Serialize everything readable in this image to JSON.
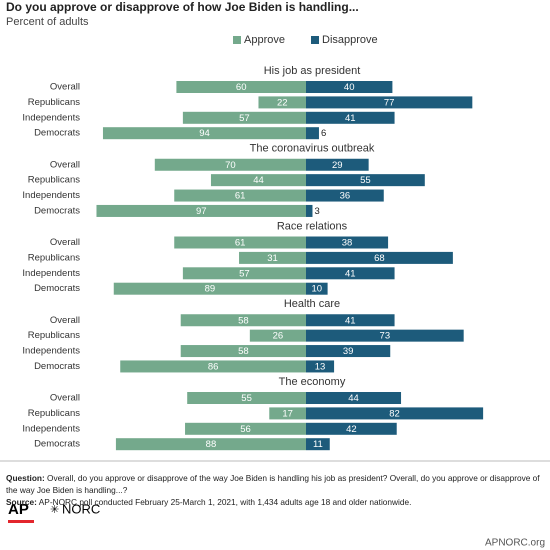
{
  "header": {
    "title": "Do you approve or disapprove of how Joe Biden is handling...",
    "subtitle": "Percent of adults"
  },
  "chart_data": [
    {
      "type": "bar",
      "title": "His job as president",
      "categories": [
        "Overall",
        "Republicans",
        "Independents",
        "Democrats"
      ],
      "series": [
        {
          "name": "Approve",
          "color": "#74a98c",
          "values": [
            60,
            22,
            57,
            94
          ]
        },
        {
          "name": "Disapprove",
          "color": "#1d5b7b",
          "values": [
            40,
            77,
            41,
            6
          ]
        }
      ]
    },
    {
      "type": "bar",
      "title": "The coronavirus outbreak",
      "categories": [
        "Overall",
        "Republicans",
        "Independents",
        "Democrats"
      ],
      "series": [
        {
          "name": "Approve",
          "color": "#74a98c",
          "values": [
            70,
            44,
            61,
            97
          ]
        },
        {
          "name": "Disapprove",
          "color": "#1d5b7b",
          "values": [
            29,
            55,
            36,
            3
          ]
        }
      ]
    },
    {
      "type": "bar",
      "title": "Race relations",
      "categories": [
        "Overall",
        "Republicans",
        "Independents",
        "Democrats"
      ],
      "series": [
        {
          "name": "Approve",
          "color": "#74a98c",
          "values": [
            61,
            31,
            57,
            89
          ]
        },
        {
          "name": "Disapprove",
          "color": "#1d5b7b",
          "values": [
            38,
            68,
            41,
            10
          ]
        }
      ]
    },
    {
      "type": "bar",
      "title": "Health care",
      "categories": [
        "Overall",
        "Republicans",
        "Independents",
        "Democrats"
      ],
      "series": [
        {
          "name": "Approve",
          "color": "#74a98c",
          "values": [
            58,
            26,
            58,
            86
          ]
        },
        {
          "name": "Disapprove",
          "color": "#1d5b7b",
          "values": [
            41,
            73,
            39,
            13
          ]
        }
      ]
    },
    {
      "type": "bar",
      "title": "The economy",
      "categories": [
        "Overall",
        "Republicans",
        "Independents",
        "Democrats"
      ],
      "series": [
        {
          "name": "Approve",
          "color": "#74a98c",
          "values": [
            55,
            17,
            56,
            88
          ]
        },
        {
          "name": "Disapprove",
          "color": "#1d5b7b",
          "values": [
            44,
            82,
            42,
            11
          ]
        }
      ]
    }
  ],
  "footer": {
    "question_label": "Question:",
    "question": "Overall, do you approve or disapprove of the way Joe Biden is handling his job as president? Overall, do you approve or disapprove of the way Joe Biden is handling...?",
    "source_label": "Source:",
    "source": "AP-NORC poll conducted February 25-March 1, 2021, with 1,434 adults age 18 and older nationwide.",
    "logo_ap": "AP",
    "logo_norc": "NORC",
    "url": "APNORC.org"
  }
}
